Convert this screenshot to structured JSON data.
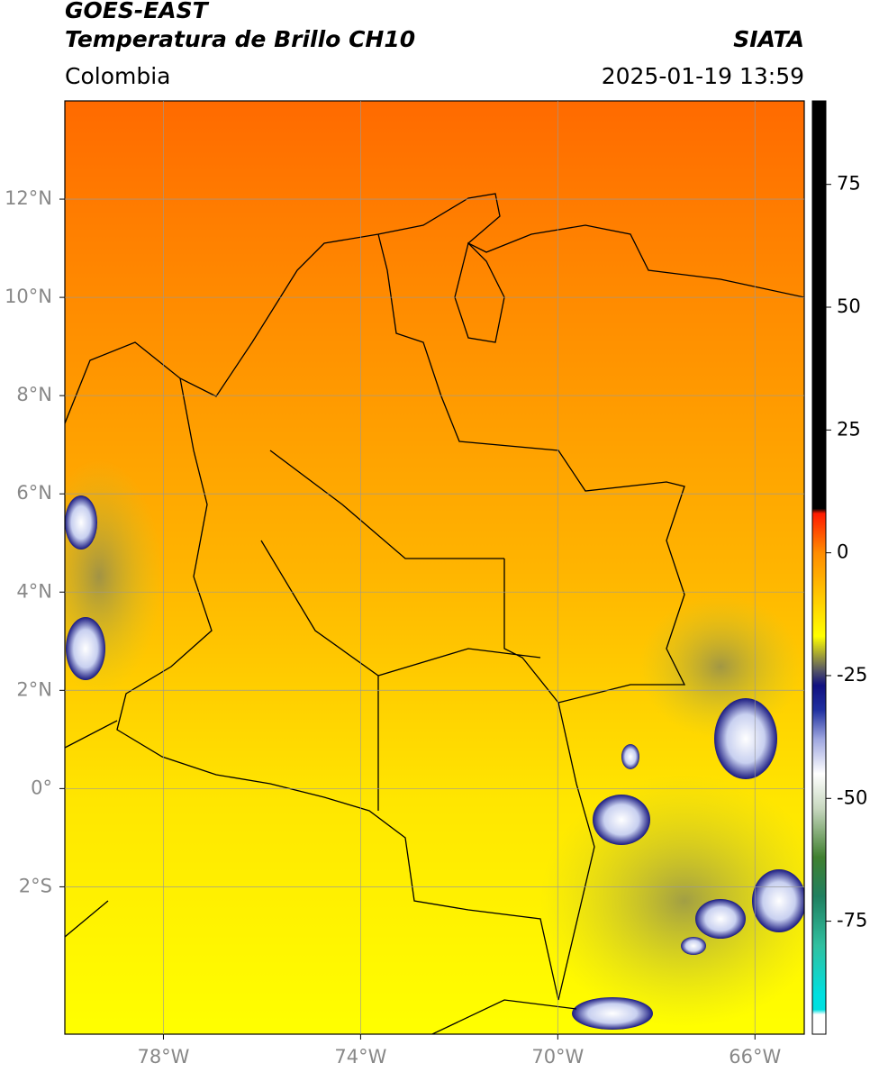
{
  "header": {
    "satellite": "GOES-EAST",
    "product": "Temperatura de Brillo CH10",
    "source": "SIATA",
    "region": "Colombia",
    "datetime": "2025-01-19 13:59"
  },
  "map": {
    "xlim": [
      -80,
      -65
    ],
    "ylim": [
      -5,
      14
    ],
    "xticks": [
      {
        "value": -78,
        "label": "78°W"
      },
      {
        "value": -74,
        "label": "74°W"
      },
      {
        "value": -70,
        "label": "70°W"
      },
      {
        "value": -66,
        "label": "66°W"
      }
    ],
    "yticks": [
      {
        "value": 12,
        "label": "12°N"
      },
      {
        "value": 10,
        "label": "10°N"
      },
      {
        "value": 8,
        "label": "8°N"
      },
      {
        "value": 6,
        "label": "6°N"
      },
      {
        "value": 4,
        "label": "4°N"
      },
      {
        "value": 2,
        "label": "2°N"
      },
      {
        "value": 0,
        "label": "0°"
      },
      {
        "value": -2,
        "label": "2°S"
      }
    ],
    "grid": true
  },
  "colorbar": {
    "lim": [
      -98,
      92
    ],
    "ticks": [
      75,
      50,
      25,
      0,
      -25,
      -50,
      -75
    ],
    "stops": [
      {
        "value": 92,
        "color": "#000000"
      },
      {
        "value": 9,
        "color": "#000000"
      },
      {
        "value": 8,
        "color": "#ff1a00"
      },
      {
        "value": 0,
        "color": "#ff8c00"
      },
      {
        "value": -12,
        "color": "#ffdd00"
      },
      {
        "value": -17,
        "color": "#ffff00"
      },
      {
        "value": -20,
        "color": "#b5b52a"
      },
      {
        "value": -24,
        "color": "#555566"
      },
      {
        "value": -27,
        "color": "#101080"
      },
      {
        "value": -32,
        "color": "#2030a0"
      },
      {
        "value": -38,
        "color": "#a0a8e0"
      },
      {
        "value": -45,
        "color": "#ffffff"
      },
      {
        "value": -52,
        "color": "#c8d8c0"
      },
      {
        "value": -62,
        "color": "#408030"
      },
      {
        "value": -70,
        "color": "#208060"
      },
      {
        "value": -80,
        "color": "#30c0a0"
      },
      {
        "value": -90,
        "color": "#00e0e0"
      },
      {
        "value": -93,
        "color": "#00e0e0"
      },
      {
        "value": -94,
        "color": "#ffffff"
      },
      {
        "value": -98,
        "color": "#ffffff"
      }
    ]
  }
}
